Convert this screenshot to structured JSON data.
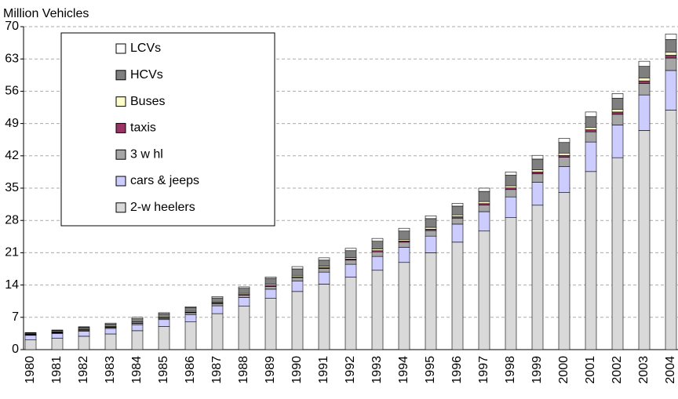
{
  "chart_data": {
    "type": "stacked_bar",
    "y_label": "Million Vehicles",
    "categories": [
      "1980",
      "1981",
      "1982",
      "1983",
      "1984",
      "1985",
      "1986",
      "1987",
      "1988",
      "1989",
      "1990",
      "1991",
      "1992",
      "1993",
      "1994",
      "1995",
      "1996",
      "1997",
      "1998",
      "1999",
      "2000",
      "2001",
      "2002",
      "2003",
      "2004"
    ],
    "series": [
      {
        "name": "2-w heelers",
        "color": "#d9d9d9",
        "values": [
          2.1,
          2.5,
          2.9,
          3.4,
          4.1,
          5.0,
          6.0,
          7.8,
          9.4,
          11.1,
          12.6,
          14.2,
          15.7,
          17.2,
          18.9,
          21.0,
          23.3,
          25.7,
          28.6,
          31.3,
          34.1,
          38.6,
          41.6,
          47.5,
          51.9
        ]
      },
      {
        "name": "cars & jeeps",
        "color": "#ccccff",
        "values": [
          1.0,
          1.0,
          1.1,
          1.2,
          1.3,
          1.5,
          1.6,
          1.7,
          1.9,
          2.0,
          2.3,
          2.6,
          2.8,
          3.0,
          3.3,
          3.6,
          3.9,
          4.2,
          4.5,
          5.0,
          5.6,
          6.4,
          7.1,
          7.7,
          8.6
        ]
      },
      {
        "name": "3 w hl",
        "color": "#a6a6a6",
        "values": [
          0.1,
          0.15,
          0.2,
          0.2,
          0.3,
          0.3,
          0.4,
          0.45,
          0.5,
          0.6,
          0.7,
          0.8,
          0.9,
          1.0,
          1.1,
          1.2,
          1.3,
          1.45,
          1.6,
          1.8,
          2.0,
          2.2,
          2.3,
          2.5,
          2.7
        ]
      },
      {
        "name": "taxis",
        "color": "#993366",
        "values": [
          0.1,
          0.1,
          0.1,
          0.1,
          0.1,
          0.1,
          0.1,
          0.15,
          0.15,
          0.2,
          0.2,
          0.2,
          0.25,
          0.25,
          0.25,
          0.3,
          0.3,
          0.3,
          0.35,
          0.4,
          0.4,
          0.45,
          0.5,
          0.55,
          0.6
        ]
      },
      {
        "name": "Buses",
        "color": "#ffffcc",
        "values": [
          0.1,
          0.1,
          0.15,
          0.15,
          0.2,
          0.2,
          0.2,
          0.2,
          0.25,
          0.25,
          0.3,
          0.3,
          0.3,
          0.35,
          0.35,
          0.4,
          0.4,
          0.45,
          0.45,
          0.5,
          0.5,
          0.55,
          0.6,
          0.65,
          0.7
        ]
      },
      {
        "name": "HCVs",
        "color": "#7f7f7f",
        "values": [
          0.2,
          0.3,
          0.4,
          0.5,
          0.7,
          0.7,
          0.8,
          0.9,
          1.1,
          1.3,
          1.4,
          1.3,
          1.5,
          1.7,
          1.8,
          1.9,
          1.9,
          2.2,
          2.3,
          2.3,
          2.3,
          2.3,
          2.4,
          2.5,
          2.7
        ]
      },
      {
        "name": "LCVs",
        "color": "#ffffff",
        "values": [
          0.1,
          0.1,
          0.1,
          0.2,
          0.3,
          0.2,
          0.2,
          0.3,
          0.3,
          0.3,
          0.5,
          0.5,
          0.5,
          0.6,
          0.6,
          0.6,
          0.6,
          0.7,
          0.7,
          0.8,
          0.9,
          1.0,
          1.0,
          1.1,
          1.2
        ]
      }
    ],
    "ylim": [
      0,
      70
    ],
    "yticks": [
      0,
      7,
      14,
      21,
      28,
      35,
      42,
      49,
      56,
      63,
      70
    ],
    "grid": true
  }
}
